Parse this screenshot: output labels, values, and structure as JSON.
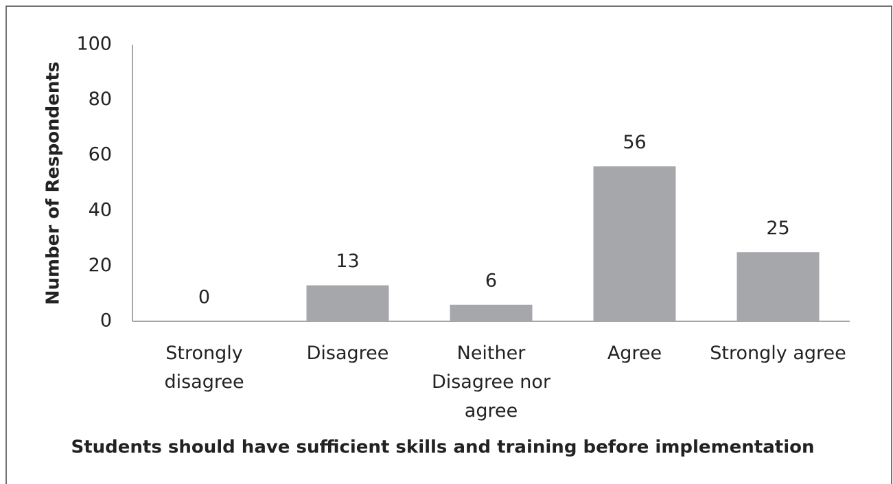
{
  "chart_data": {
    "type": "bar",
    "title": "Students should have sufficient skills and training before implementation",
    "y_label": "Number of Respondents",
    "categories": [
      "Strongly disagree",
      "Disagree",
      "Neither Disagree nor agree",
      "Agree",
      "Strongly agree"
    ],
    "values": [
      0,
      13,
      6,
      56,
      25
    ],
    "color": "#a6a7aa",
    "ylim": [
      0,
      100
    ],
    "yticks": [
      0,
      20,
      40,
      60,
      80,
      100
    ],
    "grid": false
  }
}
